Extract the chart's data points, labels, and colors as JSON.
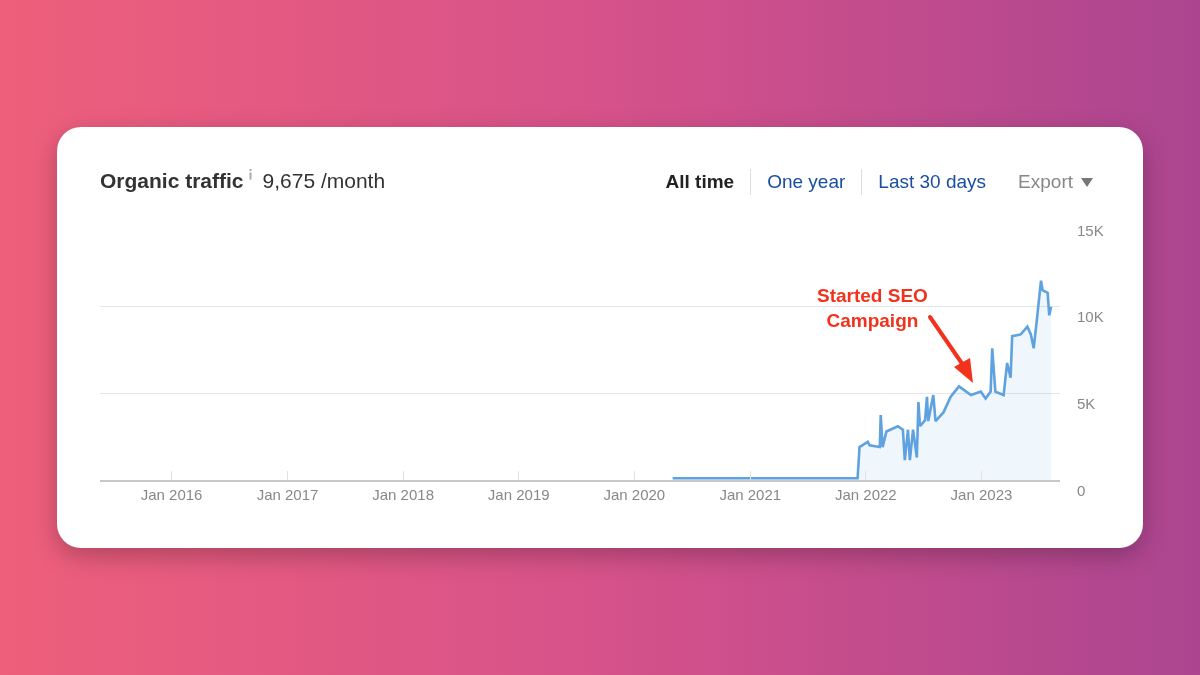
{
  "chart_data": {
    "type": "area",
    "title": "Organic traffic",
    "subtitle": "9,675 /month",
    "annotations": [
      "All time",
      "One year",
      "Last 30 days",
      "Export",
      "Started SEO\nCampaign"
    ],
    "x": [
      "2020-05-01",
      "2021-12-06",
      "2021-12-12",
      "2022-01-07",
      "2022-01-13",
      "2022-02-14",
      "2022-02-17",
      "2022-02-23",
      "2022-03-07",
      "2022-04-12",
      "2022-04-28",
      "2022-05-04",
      "2022-05-14",
      "2022-05-20",
      "2022-05-30",
      "2022-06-11",
      "2022-06-16",
      "2022-06-21",
      "2022-07-07",
      "2022-07-13",
      "2022-07-17",
      "2022-08-02",
      "2022-08-09",
      "2022-09-03",
      "2022-09-26",
      "2022-10-22",
      "2022-11-29",
      "2022-12-30",
      "2023-01-14",
      "2023-01-30",
      "2023-02-04",
      "2023-02-14",
      "2023-03-12",
      "2023-03-23",
      "2023-04-03",
      "2023-04-08",
      "2023-05-05",
      "2023-05-26",
      "2023-06-06",
      "2023-06-15",
      "2023-06-27",
      "2023-07-08",
      "2023-07-13",
      "2023-07-29",
      "2023-08-03",
      "2023-08-09"
    ],
    "series": [
      {
        "color": "#5fa2e0",
        "values": [
          100,
          100,
          1900,
          2200,
          2000,
          1900,
          3750,
          1900,
          2800,
          3100,
          2900,
          1150,
          2900,
          1150,
          2900,
          1300,
          4500,
          3100,
          3450,
          4800,
          3400,
          4900,
          3400,
          3900,
          4800,
          5400,
          4900,
          5100,
          4700,
          5100,
          7600,
          5100,
          4900,
          6750,
          5900,
          8300,
          8400,
          8850,
          8400,
          7600,
          9600,
          11500,
          10950,
          10800,
          9500,
          10000
        ]
      }
    ],
    "xlim": [
      "2015-05-20",
      "2023-09-06"
    ],
    "xticks": [
      {
        "value": "2016-01-01",
        "label": "Jan 2016"
      },
      {
        "value": "2017-01-01",
        "label": "Jan 2017"
      },
      {
        "value": "2018-01-01",
        "label": "Jan 2018"
      },
      {
        "value": "2019-01-01",
        "label": "Jan 2019"
      },
      {
        "value": "2020-01-01",
        "label": "Jan 2020"
      },
      {
        "value": "2021-01-01",
        "label": "Jan 2021"
      },
      {
        "value": "2022-01-01",
        "label": "Jan 2022"
      },
      {
        "value": "2023-01-01",
        "label": "Jan 2023"
      }
    ],
    "ylim": [
      0,
      15000
    ],
    "yticks": [
      0,
      {
        "value": 5000,
        "label": "5K"
      },
      {
        "value": 10000,
        "label": "10K"
      },
      {
        "value": 15000,
        "label": "15K"
      }
    ],
    "grid": "y",
    "marker": "none",
    "line_style": "solid"
  }
}
